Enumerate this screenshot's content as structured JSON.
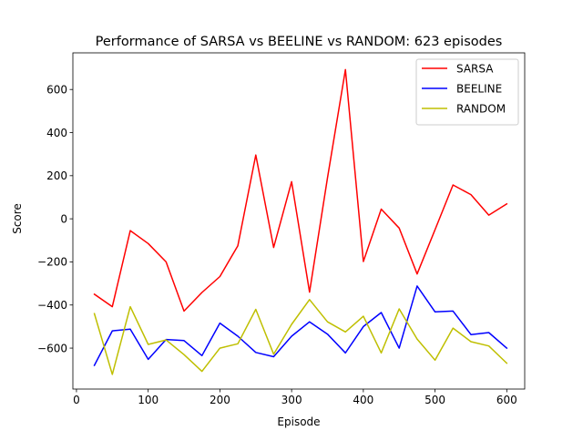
{
  "chart_data": {
    "type": "line",
    "title": "Performance of SARSA vs BEELINE vs RANDOM: 623 episodes",
    "xlabel": "Episode",
    "ylabel": "Score",
    "xlim": [
      -5,
      625
    ],
    "ylim": [
      -790,
      770
    ],
    "xticks": [
      0,
      100,
      200,
      300,
      400,
      500,
      600
    ],
    "yticks": [
      -600,
      -400,
      -200,
      0,
      200,
      400,
      600
    ],
    "ytick_labels": [
      "−600",
      "−400",
      "−200",
      "0",
      "200",
      "400",
      "600"
    ],
    "grid": false,
    "legend_position": "top-right",
    "x": [
      25,
      50,
      75,
      100,
      125,
      150,
      175,
      200,
      225,
      250,
      275,
      300,
      325,
      350,
      375,
      400,
      425,
      450,
      475,
      500,
      525,
      550,
      575,
      600
    ],
    "series": [
      {
        "name": "SARSA",
        "color": "#ff0000",
        "values": [
          -350,
          -408,
          -55,
          -115,
          -200,
          -428,
          -342,
          -268,
          -125,
          296,
          -133,
          172,
          -340,
          190,
          692,
          -198,
          45,
          -43,
          -256,
          -50,
          157,
          112,
          17,
          69
        ]
      },
      {
        "name": "BEELINE",
        "color": "#0000ff",
        "values": [
          -680,
          -520,
          -512,
          -652,
          -560,
          -565,
          -635,
          -484,
          -545,
          -620,
          -640,
          -545,
          -478,
          -535,
          -622,
          -500,
          -435,
          -600,
          -312,
          -432,
          -428,
          -537,
          -528,
          -600
        ]
      },
      {
        "name": "RANDOM",
        "color": "#bfbf00",
        "values": [
          -440,
          -722,
          -408,
          -583,
          -562,
          -630,
          -708,
          -600,
          -580,
          -420,
          -628,
          -490,
          -375,
          -478,
          -525,
          -452,
          -622,
          -418,
          -558,
          -656,
          -507,
          -570,
          -590,
          -670
        ]
      }
    ]
  }
}
